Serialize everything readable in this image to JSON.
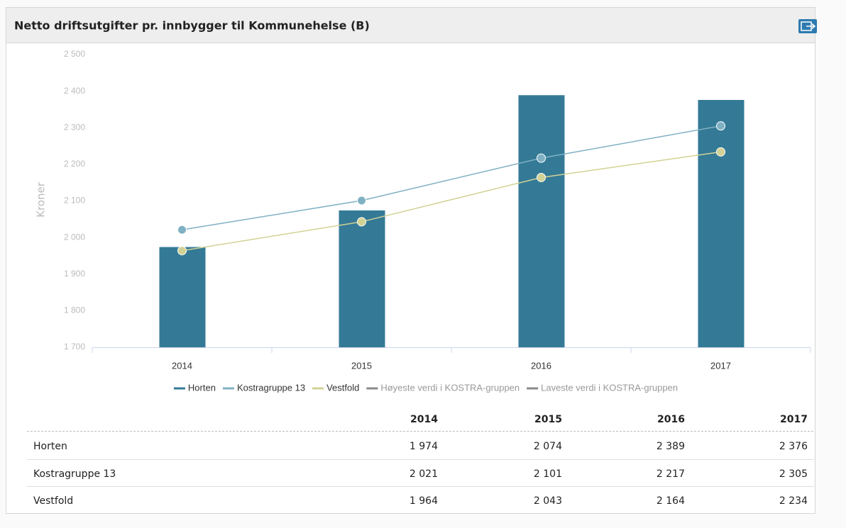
{
  "chart_data": {
    "type": "bar",
    "title": "Netto driftsutgifter pr. innbygger til Kommunehelse (B)",
    "y_label": "Kroner",
    "categories": [
      "2014",
      "2015",
      "2016",
      "2017"
    ],
    "series": [
      {
        "name": "Horten",
        "color": "#347a96",
        "type": "bar",
        "values": [
          1974,
          2074,
          2389,
          2376
        ]
      },
      {
        "name": "Kostragruppe 13",
        "color": "#80b1c3",
        "type": "line",
        "values": [
          2021,
          2101,
          2217,
          2305
        ]
      },
      {
        "name": "Vestfold",
        "color": "#d2d296",
        "type": "line",
        "values": [
          1964,
          2043,
          2164,
          2234
        ]
      },
      {
        "name": "Høyeste verdi i KOSTRA-gruppen",
        "color": "#8a8a8a",
        "type": "line",
        "values": [
          null,
          null,
          null,
          null
        ]
      },
      {
        "name": "Laveste verdi i KOSTRA-gruppen",
        "color": "#8a8a8a",
        "type": "line",
        "values": [
          null,
          null,
          null,
          null
        ]
      }
    ],
    "ylim": [
      1700,
      2500
    ],
    "yticks": [
      {
        "value": 1700,
        "label": "1 700"
      },
      {
        "value": 1800,
        "label": "1 800"
      },
      {
        "value": 1900,
        "label": "1 900"
      },
      {
        "value": 2000,
        "label": "2 000"
      },
      {
        "value": 2100,
        "label": "2 100"
      },
      {
        "value": 2200,
        "label": "2 200"
      },
      {
        "value": 2300,
        "label": "2 300"
      },
      {
        "value": 2400,
        "label": "2 400"
      },
      {
        "value": 2500,
        "label": "2 500"
      }
    ],
    "grid": false
  },
  "table": {
    "columns": [
      "2014",
      "2015",
      "2016",
      "2017"
    ],
    "rows": [
      {
        "label": "Horten",
        "cells": [
          "1 974",
          "2 074",
          "2 389",
          "2 376"
        ]
      },
      {
        "label": "Kostragruppe 13",
        "cells": [
          "2 021",
          "2 101",
          "2 217",
          "2 305"
        ]
      },
      {
        "label": "Vestfold",
        "cells": [
          "1 964",
          "2 043",
          "2 164",
          "2 234"
        ]
      }
    ]
  }
}
